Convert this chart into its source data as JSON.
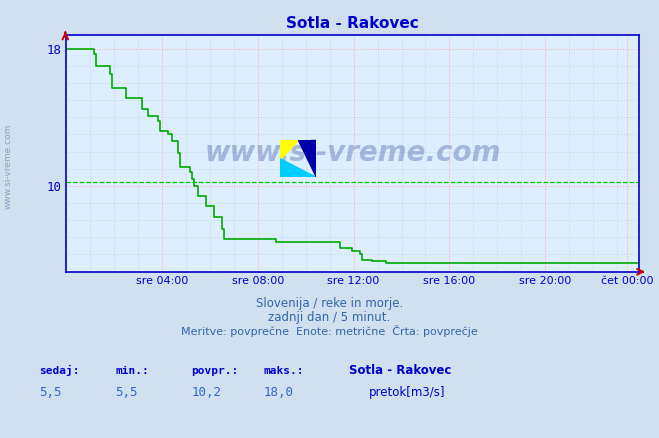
{
  "title": "Sotla - Rakovec",
  "title_color": "#0000cc",
  "bg_color": "#d0e0ee",
  "plot_bg_color": "#ddeeff",
  "grid_color_major": "#ffaaaa",
  "grid_color_minor": "#bbccdd",
  "line_color": "#00aa00",
  "axis_color": "#0000cc",
  "spine_color": "#0000cc",
  "ylim": [
    5.0,
    18.8
  ],
  "yticks": [
    10,
    18
  ],
  "xticklabels": [
    "sre 04:00",
    "sre 08:00",
    "sre 12:00",
    "sre 16:00",
    "sre 20:00",
    "čet 00:00"
  ],
  "subtitle1": "Slovenija / reke in morje.",
  "subtitle2": "zadnji dan / 5 minut.",
  "subtitle3": "Meritve: povprečne  Enote: metrične  Črta: povprečje",
  "footer_labels": [
    "sedaj:",
    "min.:",
    "povpr.:",
    "maks.:"
  ],
  "footer_values": [
    "5,5",
    "5,5",
    "10,2",
    "18,0"
  ],
  "footer_station": "Sotla - Rakovec",
  "footer_legend": "pretok[m3/s]",
  "legend_color": "#00bb00",
  "watermark_text": "www.si-vreme.com",
  "watermark_color": "#1a3a8a",
  "avg_line_y": 10.2,
  "avg_line_color": "#00cc00",
  "ylabel_text": "www.si-vreme.com",
  "n_points": 288,
  "arrow_color": "#cc0000"
}
